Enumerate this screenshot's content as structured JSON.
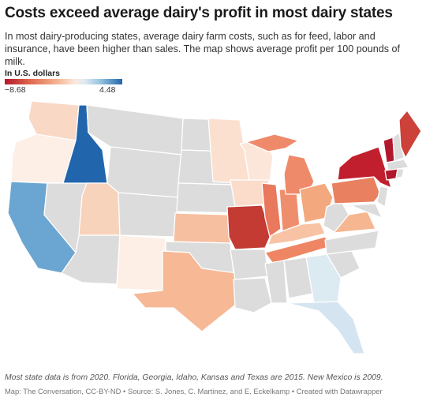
{
  "title": "Costs exceed average dairy's profit in most dairy states",
  "description": "In most dairy-producing states, average dairy farm costs, such as for feed, labor and insurance, have been higher than sales. The map shows average profit per 100 pounds of milk.",
  "legend": {
    "title": "In U.S. dollars",
    "min_label": "−8.68",
    "max_label": "4.48",
    "min": -8.68,
    "max": 4.48,
    "colors": {
      "low": "#b2182b",
      "mid": "#f7f7f7",
      "high": "#2166ac",
      "no_data": "#dcdcdc"
    }
  },
  "map_data": {
    "type": "choropleth",
    "region": "United States",
    "measure": "average profit per 100 pounds of milk (USD)",
    "states_with_data": [
      "WA",
      "OR",
      "CA",
      "ID",
      "UT",
      "NM",
      "TX",
      "KS",
      "MN",
      "WI",
      "IA",
      "MO",
      "MI",
      "IL",
      "IN",
      "OH",
      "KY",
      "TN",
      "GA",
      "FL",
      "PA",
      "NY",
      "VT",
      "ME",
      "VA",
      "CT"
    ]
  },
  "note": "Most state data is from 2020. Florida, Georgia, Idaho, Kansas and Texas are 2015. New Mexico is 2009.",
  "source": "Map: The Conversation, CC-BY-ND • Source: S. Jones, C. Martinez, and E. Eckelkamp • Created with Datawrapper"
}
